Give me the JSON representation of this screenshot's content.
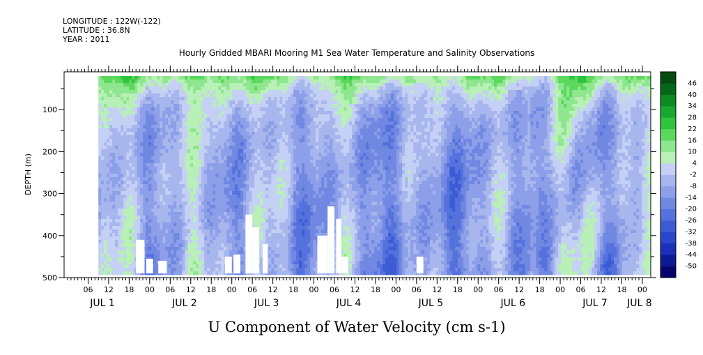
{
  "header": {
    "longitude": "LONGITUDE : 122W(-122)",
    "latitude": "LATITUDE : 36.8N",
    "year": "YEAR : 2011",
    "title": "Hourly Gridded MBARI Mooring M1 Sea Water Temperature and Salinity Observations"
  },
  "chart_data": {
    "type": "heatmap",
    "title": "Hourly Gridded MBARI Mooring M1 Sea Water Temperature and Salinity Observations",
    "xlabel": "U Component of Water Velocity (cm s-1)",
    "ylabel": "DEPTH (m)",
    "x_hours": [
      6,
      12,
      18,
      0,
      6,
      12,
      18,
      0,
      6,
      12,
      18,
      0,
      6,
      12,
      18,
      0,
      6,
      12,
      18,
      0,
      6,
      12,
      18,
      0,
      6,
      12,
      18,
      0
    ],
    "x_tick_labels": [
      "06",
      "12",
      "18",
      "00",
      "06",
      "12",
      "18",
      "00",
      "06",
      "12",
      "18",
      "00",
      "06",
      "12",
      "18",
      "00",
      "06",
      "12",
      "18",
      "00",
      "06",
      "12",
      "18",
      "00",
      "06",
      "12",
      "18",
      "00"
    ],
    "x_days": [
      "JUL  1",
      "JUL  2",
      "JUL  3",
      "JUL  4",
      "JUL  5",
      "JUL  6",
      "JUL  7",
      "JUL  8"
    ],
    "x_range_hours": [
      0,
      168
    ],
    "data_start_hour": 9,
    "y_ticks": [
      100,
      200,
      300,
      400,
      500
    ],
    "y_tick_labels": [
      "100",
      "200",
      "300",
      "400",
      "500"
    ],
    "y_range": [
      500,
      10
    ],
    "data_depth_range": [
      20,
      490
    ],
    "colorbar": {
      "levels": [
        -50,
        -44,
        -38,
        -32,
        -26,
        -20,
        -14,
        -8,
        -2,
        4,
        10,
        16,
        22,
        28,
        34,
        40,
        46
      ],
      "labels": [
        "46",
        "40",
        "34",
        "28",
        "22",
        "16",
        "10",
        "4",
        "-2",
        "-8",
        "-14",
        "-20",
        "-26",
        "-32",
        "-38",
        "-44",
        "-50"
      ],
      "colors": [
        "#06066e",
        "#0e1a96",
        "#1a30b8",
        "#2a46cc",
        "#3c5cd6",
        "#5572dc",
        "#7088e2",
        "#8c9fe8",
        "#a8b6ee",
        "#c4d0f4",
        "#b8f0b8",
        "#8ee68e",
        "#5cd85c",
        "#2ec43e",
        "#18a830",
        "#0e8a24",
        "#06661a",
        "#044a12"
      ]
    },
    "pattern": "U velocity mostly -2 to -20 cm/s at depth (blue bands), +4 to +28 cm/s near surface and in vertical plumes (green), blank patches near 350-490 m on JUL 2, JUL 3 and JUL 4",
    "grid": false
  }
}
